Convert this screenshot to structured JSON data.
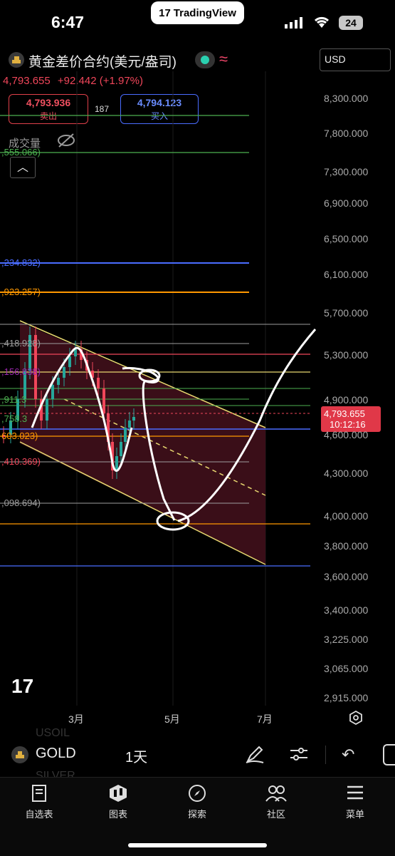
{
  "status": {
    "time": "6:47",
    "app_pill": "TradingView",
    "battery": "24"
  },
  "header": {
    "title": "黄金差价合约(美元/盎司)",
    "price": "4,793.655",
    "change": "+92.442 (+1.97%)",
    "sell_price": "4,793.936",
    "sell_label": "卖出",
    "buy_price": "4,794.123",
    "buy_label": "买入",
    "spread": "187",
    "currency": "USD",
    "volume_label": "成交量"
  },
  "axis": {
    "labels": [
      "8,300.000",
      "7,800.000",
      "7,300.000",
      "6,900.000",
      "6,500.000",
      "6,100.000",
      "5,700.000",
      "5,300.000",
      "4,900.000",
      "4,600.000",
      "4,300.000",
      "4,000.000",
      "3,800.000",
      "3,600.000",
      "3,400.000",
      "3,225.000",
      "3,065.000",
      "2,915.000"
    ],
    "current_price": "4,793.655",
    "countdown": "10:12:16"
  },
  "levels": [
    {
      "label": ",555.066)",
      "color": "#4caf50"
    },
    {
      "label": ",234.832)",
      "color": "#4a6cff"
    },
    {
      "label": ",923.257)",
      "color": "#ff9800"
    },
    {
      "label": ",418.928)",
      "color": "#9e9e9e"
    },
    {
      "label": ",156.838)",
      "color": "#9c27b0"
    },
    {
      "label": ",911.3",
      "color": "#4caf50"
    },
    {
      "label": ",758.3",
      "color": "#4caf50"
    },
    {
      "label": "603.023)",
      "color": "#ff9800"
    },
    {
      "label": ",410.369)",
      "color": "#f0465a"
    },
    {
      "label": ",098.694)",
      "color": "#9e9e9e"
    }
  ],
  "time_axis": [
    "3月",
    "5月",
    "7月"
  ],
  "bottom_bar": {
    "symbol": "GOLD",
    "interval": "1天",
    "ghost_above": "USOIL",
    "ghost_below": "SILVER"
  },
  "nav": [
    {
      "label": "自选表",
      "icon": "book-icon"
    },
    {
      "label": "图表",
      "icon": "candles-icon"
    },
    {
      "label": "探索",
      "icon": "compass-icon"
    },
    {
      "label": "社区",
      "icon": "people-icon"
    },
    {
      "label": "菜单",
      "icon": "menu-icon"
    }
  ],
  "colors": {
    "up": "#26a69a",
    "down": "#f0465a",
    "accent": "#4a6cff"
  }
}
